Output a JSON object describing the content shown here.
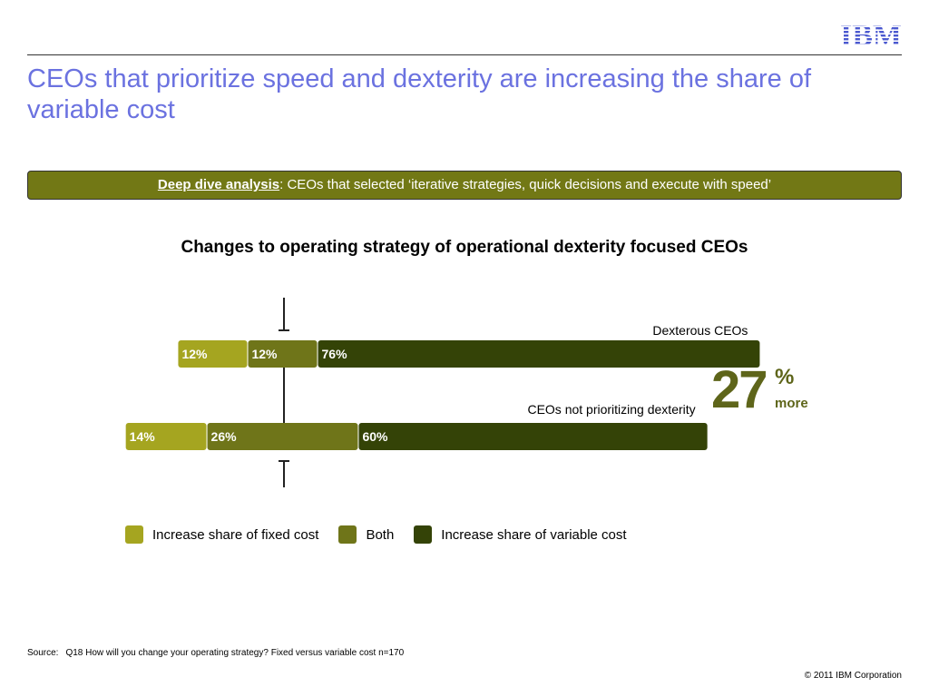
{
  "header": {
    "logo_text": "IBM",
    "title": "CEOs that prioritize speed and dexterity are increasing the share of variable cost"
  },
  "banner": {
    "lead": "Deep dive analysis",
    "text": ": CEOs that selected ‘iterative strategies, quick decisions and execute with speed’"
  },
  "chart_data": {
    "type": "bar",
    "orientation": "horizontal",
    "stacked": true,
    "title": "Changes to operating strategy of operational dexterity focused CEOs",
    "categories": [
      "Dexterous CEOs",
      "CEOs not prioritizing dexterity"
    ],
    "series": [
      {
        "name": "Increase share of fixed cost",
        "values": [
          12,
          14
        ],
        "labels": [
          "12%",
          "14%"
        ],
        "color": "#a5a520"
      },
      {
        "name": "Both",
        "values": [
          12,
          26
        ],
        "labels": [
          "12%",
          "26%"
        ],
        "color": "#6f7519"
      },
      {
        "name": "Increase share of variable cost",
        "values": [
          76,
          60
        ],
        "labels": [
          "76%",
          "60%"
        ],
        "color": "#344307"
      }
    ],
    "xlim": [
      0,
      100
    ],
    "legend_position": "bottom"
  },
  "callout": {
    "number": "27",
    "unit": "%",
    "text": "more",
    "color": "#5e651a"
  },
  "footer": {
    "source_key": "Source:",
    "source_text": "Q18  How will you change your operating strategy? Fixed versus variable cost n=170",
    "copyright": "© 2011 IBM Corporation"
  }
}
